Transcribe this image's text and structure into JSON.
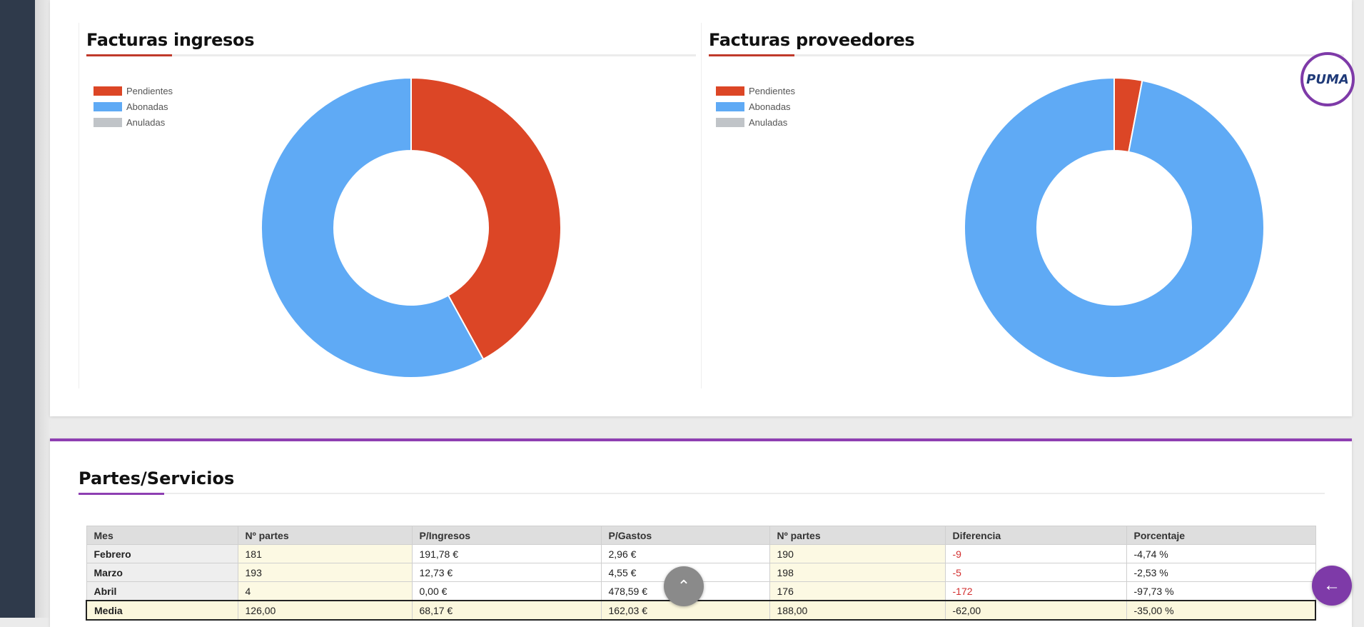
{
  "logo": {
    "text": "PUMA"
  },
  "charts": {
    "ingresos": {
      "title": "Facturas ingresos"
    },
    "proveedores": {
      "title": "Facturas proveedores"
    }
  },
  "chart_data": [
    {
      "type": "pie",
      "title": "Facturas ingresos",
      "legend_position": "top-left",
      "categories": [
        "Pendientes",
        "Abonadas",
        "Anuladas"
      ],
      "values": [
        42,
        58,
        0
      ],
      "colors": [
        "#dc4626",
        "#5faaf5",
        "#c0c4c8"
      ]
    },
    {
      "type": "pie",
      "title": "Facturas proveedores",
      "legend_position": "top-left",
      "categories": [
        "Pendientes",
        "Abonadas",
        "Anuladas"
      ],
      "values": [
        3,
        97,
        0
      ],
      "colors": [
        "#dc4626",
        "#5faaf5",
        "#c0c4c8"
      ]
    }
  ],
  "partes": {
    "title": "Partes/Servicios",
    "columns": [
      "Mes",
      "Nº partes",
      "P/Ingresos",
      "P/Gastos",
      "Nº partes",
      "Diferencia",
      "Porcentaje"
    ],
    "rows": [
      [
        "Febrero",
        "181",
        "191,78 €",
        "2,96 €",
        "190",
        "-9",
        "-4,74 %"
      ],
      [
        "Marzo",
        "193",
        "12,73 €",
        "4,55 €",
        "198",
        "-5",
        "-2,53 %"
      ],
      [
        "Abril",
        "4",
        "0,00 €",
        "478,59 €",
        "176",
        "-172",
        "-97,73 %"
      ]
    ],
    "media": [
      "Media",
      "126,00",
      "68,17 €",
      "162,03 €",
      "188,00",
      "-62,00",
      "-35,00 %"
    ]
  },
  "buttons": {
    "scroll_top_icon": "double-chevron-up-icon",
    "back_icon": "arrow-left-icon",
    "scroll_top_glyph": "⌃",
    "back_glyph": "←"
  },
  "colors": {
    "accent_purple": "#7e3aa8",
    "accent_red": "#c0392b",
    "rail": "#2f3a4b"
  }
}
